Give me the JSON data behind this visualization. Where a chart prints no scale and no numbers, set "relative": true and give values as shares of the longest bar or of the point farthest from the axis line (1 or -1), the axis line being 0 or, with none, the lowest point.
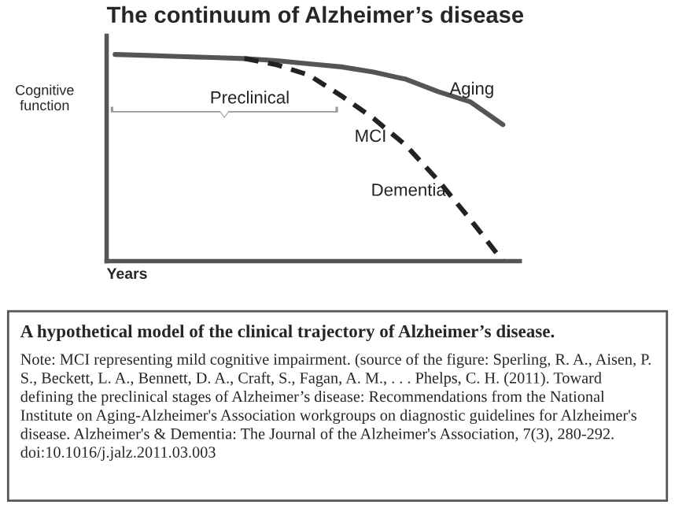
{
  "chart_data": {
    "type": "line",
    "title": "The continuum of Alzheimer’s disease",
    "xlabel": "Years",
    "ylabel": "Cognitive\nfunction",
    "relative": true,
    "tick_labels": false,
    "marker": "none",
    "categories": [
      null,
      null,
      null,
      null,
      null,
      null,
      null,
      null,
      null,
      null,
      null,
      null,
      null
    ],
    "series": [
      {
        "color": "#555555",
        "line_style": "solid",
        "values": [
          1.0,
          0.995,
          0.99,
          0.985,
          0.98,
          0.97,
          0.955,
          0.94,
          0.915,
          0.88,
          0.82,
          0.77,
          0.66
        ]
      },
      {
        "color": "#222222",
        "line_style": "dashed",
        "values": [
          null,
          null,
          null,
          null,
          0.98,
          0.95,
          0.9,
          0.8,
          0.69,
          0.56,
          0.39,
          0.2,
          0.0
        ]
      }
    ],
    "annotations": [
      "Aging",
      "Preclinical",
      "MCI",
      "Dementia",
      "A hypothetical model of the clinical trajectory of Alzheimer’s disease.",
      "Note: MCI representing mild cognitive impairment. (source of the figure: Sperling, R. A., Aisen, P. S., Beckett, L. A., Bennett, D. A., Craft, S., Fagan, A. M., . . . Phelps, C. H. (2011). Toward defining the preclinical stages of Alzheimer’s disease: Recommendations from the National Institute on Aging-Alzheimer's Association workgroups on diagnostic guidelines for Alzheimer's disease. Alzheimer's & Dementia: The Journal of the Alzheimer's Association, 7(3), 280-292. doi:10.1016/j.jalz.2011.03.003"
    ]
  }
}
